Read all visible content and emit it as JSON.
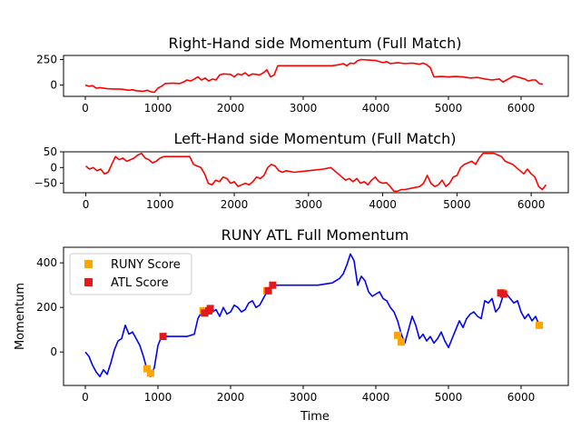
{
  "figure": {
    "background": "#ffffff"
  },
  "chart_data": [
    {
      "type": "line",
      "title": "Right-Hand side Momentum (Full Match)",
      "xlabel": "",
      "ylabel": "",
      "xlim": [
        -300,
        6650
      ],
      "ylim": [
        -110,
        290
      ],
      "xticks": [
        0,
        1000,
        2000,
        3000,
        4000,
        5000,
        6000
      ],
      "yticks": [
        0,
        250
      ],
      "grid": false,
      "series": [
        {
          "color": "#ff0000",
          "x": [
            0,
            50,
            100,
            150,
            200,
            300,
            400,
            500,
            600,
            650,
            700,
            800,
            850,
            900,
            950,
            1000,
            1050,
            1100,
            1200,
            1300,
            1350,
            1400,
            1450,
            1500,
            1550,
            1600,
            1650,
            1700,
            1750,
            1800,
            1850,
            1900,
            2000,
            2050,
            2100,
            2150,
            2200,
            2250,
            2300,
            2400,
            2450,
            2500,
            2550,
            2600,
            2650,
            2700,
            2800,
            3000,
            3200,
            3400,
            3500,
            3550,
            3600,
            3650,
            3700,
            3750,
            3800,
            3900,
            4000,
            4100,
            4150,
            4200,
            4300,
            4400,
            4500,
            4600,
            4650,
            4700,
            4750,
            4800,
            4900,
            5000,
            5100,
            5200,
            5300,
            5400,
            5500,
            5600,
            5700,
            5750,
            5800,
            5850,
            5900,
            5950,
            6000,
            6050,
            6100,
            6150,
            6200,
            6250,
            6300
          ],
          "y": [
            0,
            -10,
            -5,
            -30,
            -25,
            -35,
            -38,
            -40,
            -50,
            -45,
            -55,
            -60,
            -50,
            -65,
            -70,
            -30,
            -10,
            15,
            20,
            15,
            30,
            50,
            40,
            60,
            80,
            50,
            70,
            40,
            60,
            50,
            100,
            110,
            105,
            80,
            110,
            100,
            120,
            90,
            110,
            100,
            120,
            150,
            80,
            100,
            190,
            190,
            190,
            190,
            190,
            190,
            200,
            210,
            190,
            215,
            210,
            240,
            250,
            245,
            240,
            220,
            230,
            210,
            220,
            210,
            215,
            205,
            215,
            200,
            170,
            80,
            85,
            80,
            85,
            80,
            70,
            75,
            60,
            50,
            60,
            30,
            50,
            70,
            90,
            80,
            70,
            60,
            40,
            50,
            50,
            15,
            10
          ]
        }
      ]
    },
    {
      "type": "line",
      "title": "Left-Hand side Momentum (Full Match)",
      "xlabel": "",
      "ylabel": "",
      "xlim": [
        -300,
        6500
      ],
      "ylim": [
        -80,
        50
      ],
      "xticks": [
        0,
        1000,
        2000,
        3000,
        4000,
        5000,
        6000
      ],
      "yticks": [
        -50,
        0,
        50
      ],
      "grid": false,
      "series": [
        {
          "color": "#ff0000",
          "x": [
            0,
            50,
            100,
            150,
            200,
            250,
            300,
            350,
            400,
            450,
            500,
            550,
            600,
            650,
            700,
            750,
            800,
            850,
            900,
            950,
            1000,
            1050,
            1100,
            1200,
            1300,
            1400,
            1450,
            1500,
            1550,
            1600,
            1650,
            1700,
            1750,
            1800,
            1850,
            1900,
            1950,
            2000,
            2050,
            2100,
            2150,
            2200,
            2250,
            2300,
            2350,
            2400,
            2450,
            2500,
            2550,
            2600,
            2650,
            2700,
            2800,
            3000,
            3200,
            3300,
            3400,
            3450,
            3500,
            3550,
            3600,
            3650,
            3700,
            3750,
            3800,
            3850,
            3900,
            3950,
            4000,
            4050,
            4100,
            4150,
            4200,
            4250,
            4300,
            4400,
            4500,
            4550,
            4600,
            4650,
            4700,
            4750,
            4800,
            4850,
            4900,
            4950,
            5000,
            5050,
            5100,
            5150,
            5200,
            5250,
            5300,
            5350,
            5400,
            5450,
            5500,
            5550,
            5600,
            5650,
            5700,
            5750,
            5800,
            5850,
            5900,
            5950,
            6000,
            6050,
            6100,
            6150,
            6200
          ],
          "y": [
            5,
            -5,
            0,
            -10,
            -5,
            -20,
            -15,
            10,
            35,
            25,
            30,
            20,
            25,
            30,
            40,
            45,
            30,
            25,
            15,
            20,
            30,
            35,
            35,
            35,
            35,
            35,
            10,
            5,
            0,
            -20,
            -50,
            -55,
            -40,
            -45,
            -30,
            -35,
            -50,
            -45,
            -60,
            -55,
            -50,
            -55,
            -45,
            -30,
            -35,
            -25,
            0,
            10,
            5,
            -10,
            -15,
            -10,
            -15,
            -10,
            -5,
            0,
            -20,
            -30,
            -40,
            -35,
            -45,
            -35,
            -50,
            -45,
            -55,
            -40,
            -30,
            -45,
            -50,
            -48,
            -60,
            -75,
            -75,
            -70,
            -70,
            -65,
            -60,
            -50,
            -25,
            -50,
            -60,
            -55,
            -40,
            -60,
            -50,
            -30,
            -25,
            0,
            10,
            15,
            20,
            10,
            30,
            45,
            45,
            45,
            45,
            40,
            35,
            20,
            15,
            10,
            0,
            -10,
            -20,
            -5,
            -20,
            -30,
            -60,
            -70,
            -55
          ]
        }
      ]
    },
    {
      "type": "line",
      "title": "RUNY ATL Full Momentum",
      "xlabel": "Time",
      "ylabel": "Momentum",
      "xlim": [
        -300,
        6650
      ],
      "ylim": [
        -150,
        470
      ],
      "xticks": [
        0,
        1000,
        2000,
        3000,
        4000,
        5000,
        6000
      ],
      "yticks": [
        0,
        200,
        400
      ],
      "grid": false,
      "legend": "top-left",
      "series": [
        {
          "type": "line",
          "color": "#0000ff",
          "x": [
            0,
            50,
            100,
            150,
            200,
            250,
            300,
            350,
            400,
            450,
            500,
            550,
            600,
            650,
            700,
            750,
            800,
            850,
            900,
            950,
            1000,
            1050,
            1100,
            1200,
            1300,
            1400,
            1500,
            1550,
            1600,
            1650,
            1700,
            1750,
            1800,
            1850,
            1900,
            1950,
            2000,
            2050,
            2100,
            2150,
            2200,
            2250,
            2300,
            2350,
            2400,
            2450,
            2500,
            2550,
            2600,
            2650,
            2700,
            2800,
            3000,
            3200,
            3400,
            3500,
            3550,
            3600,
            3650,
            3700,
            3750,
            3800,
            3850,
            3900,
            3950,
            4000,
            4050,
            4100,
            4150,
            4200,
            4250,
            4300,
            4350,
            4400,
            4450,
            4500,
            4550,
            4600,
            4650,
            4700,
            4750,
            4800,
            4850,
            4900,
            4950,
            5000,
            5050,
            5100,
            5150,
            5200,
            5250,
            5300,
            5350,
            5400,
            5450,
            5500,
            5550,
            5600,
            5650,
            5700,
            5750,
            5800,
            5850,
            5900,
            5950,
            6000,
            6050,
            6100,
            6150,
            6200,
            6250,
            6300
          ],
          "y": [
            0,
            -20,
            -60,
            -90,
            -110,
            -80,
            -100,
            -50,
            10,
            50,
            60,
            120,
            80,
            90,
            60,
            30,
            -20,
            -80,
            -110,
            -70,
            30,
            70,
            70,
            70,
            70,
            70,
            80,
            150,
            180,
            190,
            200,
            180,
            190,
            160,
            200,
            170,
            180,
            210,
            200,
            180,
            190,
            220,
            230,
            200,
            210,
            240,
            270,
            290,
            300,
            300,
            300,
            300,
            300,
            300,
            310,
            330,
            350,
            390,
            440,
            410,
            300,
            340,
            320,
            270,
            250,
            260,
            270,
            240,
            230,
            200,
            180,
            140,
            80,
            40,
            100,
            160,
            120,
            60,
            80,
            50,
            70,
            40,
            60,
            90,
            50,
            20,
            60,
            100,
            140,
            110,
            150,
            170,
            180,
            160,
            150,
            230,
            220,
            240,
            180,
            200,
            250,
            260,
            240,
            220,
            230,
            180,
            150,
            170,
            140,
            160,
            120,
            110
          ]
        },
        {
          "type": "scatter",
          "name": "RUNY Score",
          "color": "#ffa500",
          "marker": "square",
          "x": [
            850,
            900,
            1620,
            1650,
            2500,
            4300,
            4350,
            5750,
            6250
          ],
          "y": [
            -75,
            -95,
            185,
            175,
            275,
            75,
            45,
            265,
            120
          ]
        },
        {
          "type": "scatter",
          "name": "ATL Score",
          "color": "#e31a1c",
          "marker": "square",
          "x": [
            1070,
            1640,
            1700,
            1720,
            2520,
            2580,
            5720,
            5760
          ],
          "y": [
            70,
            175,
            185,
            195,
            275,
            300,
            265,
            260
          ]
        }
      ]
    }
  ]
}
